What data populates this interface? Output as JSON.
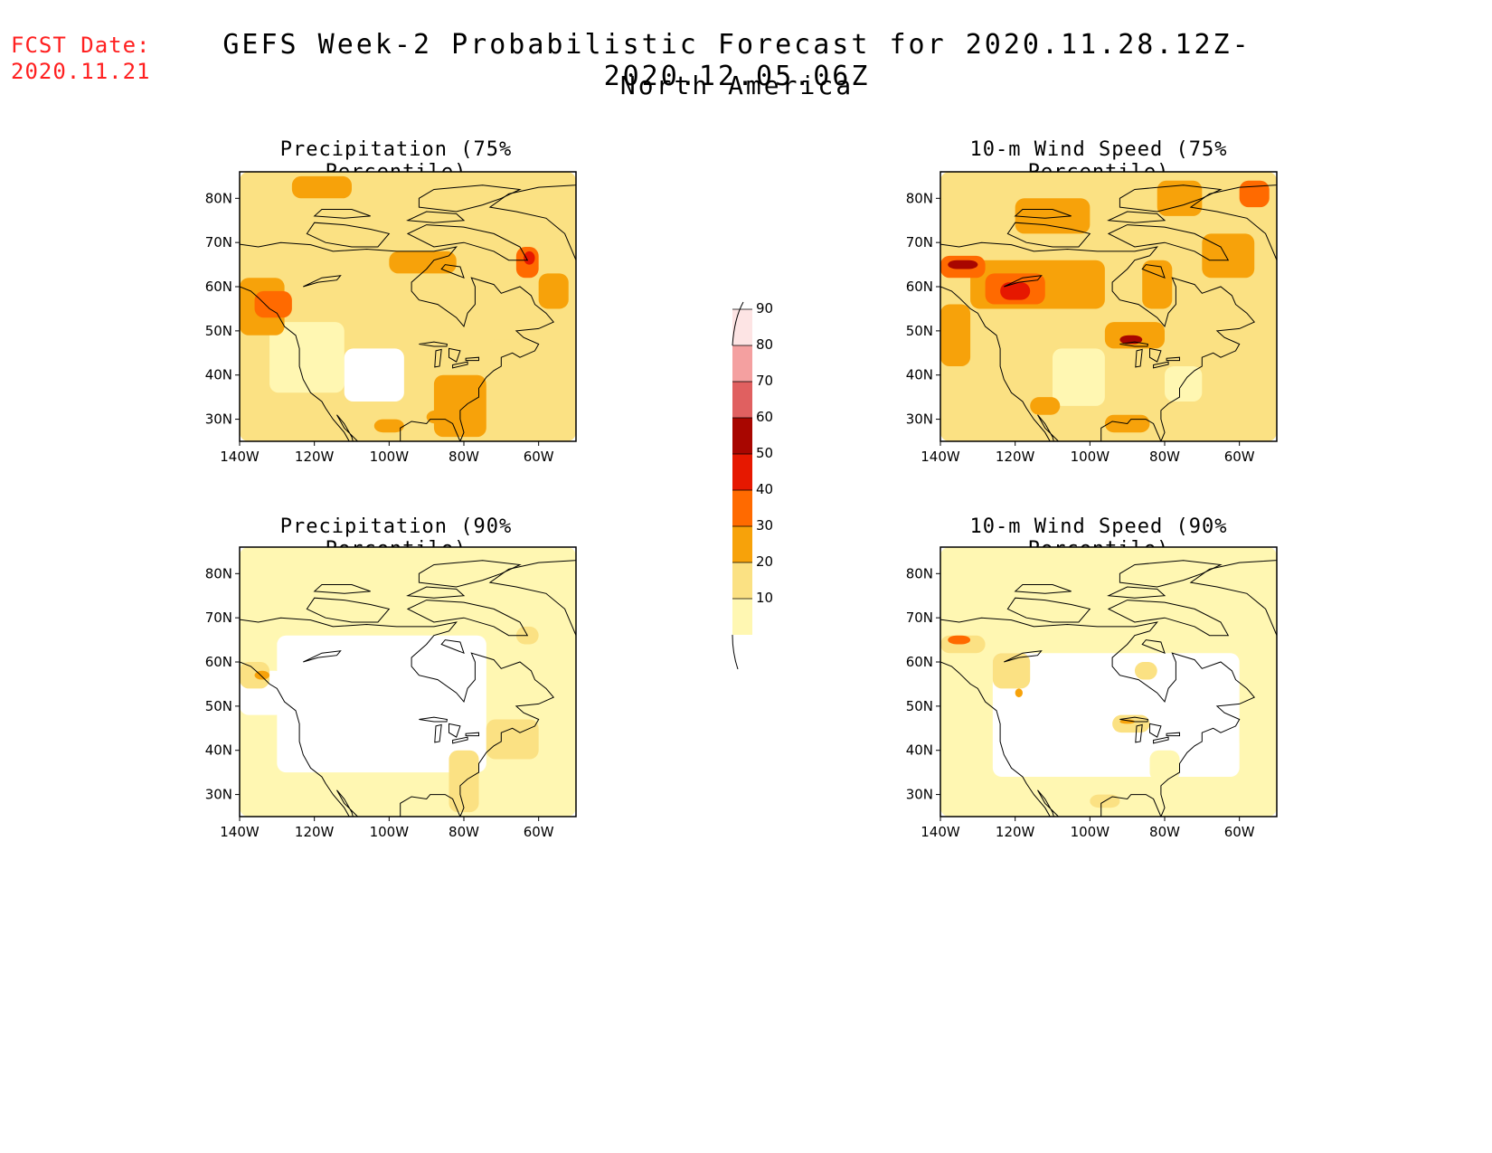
{
  "header": {
    "fcst_label": "FCST Date:",
    "fcst_date": "2020.11.21",
    "title": "GEFS Week-2 Probabilistic Forecast for 2020.11.28.12Z-2020.12.05.06Z",
    "subtitle": "North America"
  },
  "panels": [
    {
      "title": "Precipitation (75% Percentile)",
      "level": "moderate"
    },
    {
      "title": "10-m Wind Speed (75% Percentile)",
      "level": "high"
    },
    {
      "title": "Precipitation (90% Percentile)",
      "level": "low"
    },
    {
      "title": "10-m Wind Speed (90% Percentile)",
      "level": "lowmid"
    }
  ],
  "axes": {
    "lat_labels": [
      "80N",
      "70N",
      "60N",
      "50N",
      "40N",
      "30N"
    ],
    "lon_labels": [
      "140W",
      "120W",
      "100W",
      "80W",
      "60W"
    ]
  },
  "colorbar": {
    "levels": [
      "10",
      "20",
      "30",
      "40",
      "50",
      "60",
      "70",
      "80",
      "90"
    ],
    "colors": [
      "#fff7b2",
      "#fbe183",
      "#f7a20a",
      "#ff6a00",
      "#e61800",
      "#a80600",
      "#e06060",
      "#f4a0a0",
      "#fde4e4"
    ]
  }
}
